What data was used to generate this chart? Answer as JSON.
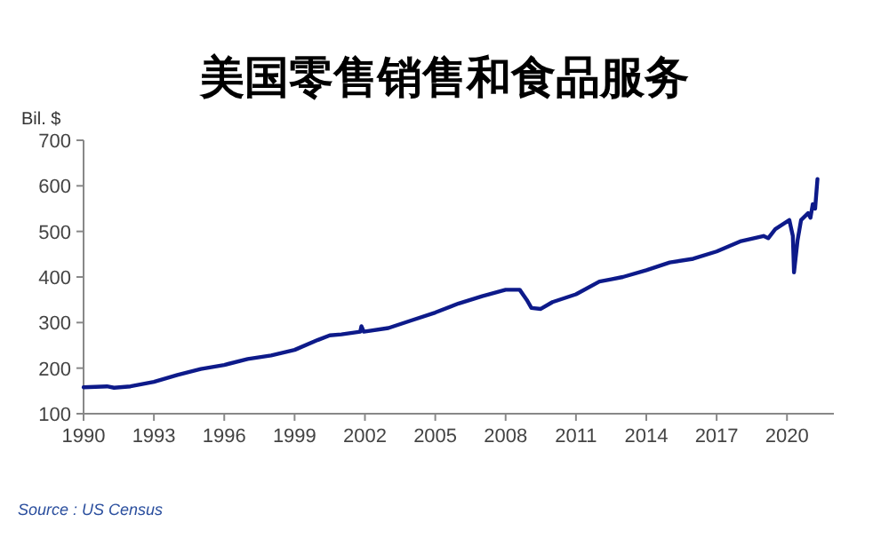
{
  "chart_data": {
    "type": "line",
    "title": "美国零售销售和食品服务",
    "ylabel": "Bil. $",
    "x": [
      1990,
      1991,
      1991.3,
      1992,
      1993,
      1994,
      1995,
      1996,
      1997,
      1998,
      1999,
      2000,
      2000.5,
      2001,
      2001.8,
      2001.85,
      2001.95,
      2003,
      2004,
      2005,
      2006,
      2007,
      2008,
      2008.6,
      2008.9,
      2009.1,
      2009.5,
      2010,
      2011,
      2012,
      2012.5,
      2013,
      2014,
      2015,
      2016,
      2017,
      2018,
      2019,
      2019.2,
      2019.5,
      2020.1,
      2020.25,
      2020.3,
      2020.45,
      2020.6,
      2020.9,
      2021,
      2021.1,
      2021.2,
      2021.3
    ],
    "series": [
      {
        "color": "#0d1a8a",
        "values": [
          158,
          160,
          157,
          160,
          170,
          185,
          198,
          207,
          220,
          228,
          240,
          262,
          272,
          274,
          280,
          292,
          280,
          288,
          305,
          322,
          342,
          358,
          372,
          372,
          350,
          332,
          330,
          345,
          362,
          390,
          395,
          400,
          415,
          432,
          440,
          456,
          478,
          490,
          485,
          505,
          525,
          490,
          410,
          480,
          525,
          540,
          530,
          560,
          550,
          615
        ]
      }
    ],
    "xlim": [
      1990,
      2022
    ],
    "xticks": [
      1990,
      1993,
      1996,
      1999,
      2002,
      2005,
      2008,
      2011,
      2014,
      2017,
      2020
    ],
    "ylim": [
      100,
      700
    ],
    "yticks": [
      100,
      200,
      300,
      400,
      500,
      600,
      700
    ],
    "grid": false,
    "marker": "none",
    "line_style": "solid",
    "annotations": [
      "Source : US Census"
    ]
  }
}
